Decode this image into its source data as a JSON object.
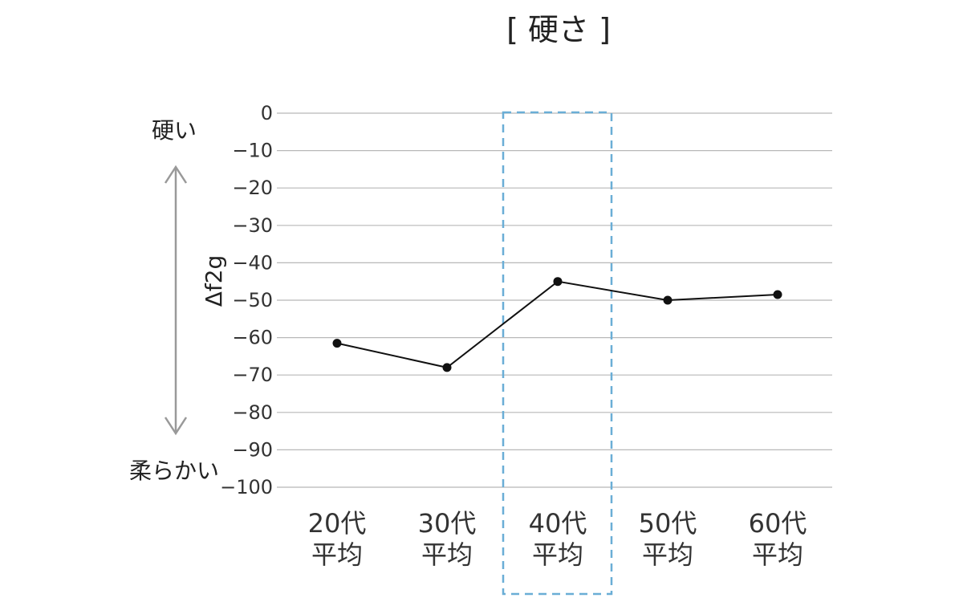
{
  "chart_data": {
    "type": "line",
    "title": "[ 硬さ ]",
    "ylabel": "Δf2g",
    "xlabel": "",
    "ylim": [
      -100,
      0
    ],
    "yticks": [
      0,
      -10,
      -20,
      -30,
      -40,
      -50,
      -60,
      -70,
      -80,
      -90,
      -100
    ],
    "ytick_labels": [
      "0",
      "−10",
      "−20",
      "−30",
      "−40",
      "−50",
      "−60",
      "−70",
      "−80",
      "−90",
      "−100"
    ],
    "categories": [
      {
        "line1": "20代",
        "line2": "平均"
      },
      {
        "line1": "30代",
        "line2": "平均"
      },
      {
        "line1": "40代",
        "line2": "平均"
      },
      {
        "line1": "50代",
        "line2": "平均"
      },
      {
        "line1": "60代",
        "line2": "平均"
      }
    ],
    "series": [
      {
        "values": [
          -61.5,
          -68,
          -45,
          -50,
          -48.5
        ]
      }
    ],
    "highlight_index": 2,
    "annotations": {
      "top": "硬い",
      "bottom": "柔らかい"
    },
    "grid": true,
    "colors": {
      "line": "#111111",
      "grid": "#b8b8b8",
      "highlight": "#6aaed6",
      "highlight_text": "#3a9ec9",
      "arrow": "#999999",
      "text": "#333333"
    }
  }
}
